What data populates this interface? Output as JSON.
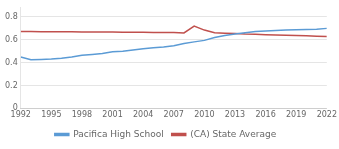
{
  "chart_data": {
    "type": "line",
    "x": [
      1992,
      1993,
      1994,
      1995,
      1996,
      1997,
      1998,
      1999,
      2000,
      2001,
      2002,
      2003,
      2004,
      2005,
      2006,
      2007,
      2008,
      2009,
      2010,
      2011,
      2012,
      2013,
      2014,
      2015,
      2016,
      2017,
      2018,
      2019,
      2020,
      2021,
      2022
    ],
    "series": [
      {
        "name": "Pacifica High School",
        "color": "#5b9bd5",
        "values": [
          0.45,
          0.425,
          0.428,
          0.432,
          0.438,
          0.45,
          0.465,
          0.472,
          0.48,
          0.495,
          0.5,
          0.51,
          0.522,
          0.53,
          0.538,
          0.548,
          0.568,
          0.582,
          0.595,
          0.62,
          0.638,
          0.65,
          0.662,
          0.672,
          0.678,
          0.682,
          0.685,
          0.688,
          0.69,
          0.692,
          0.7
        ]
      },
      {
        "name": "(CA) State Average",
        "color": "#c0504d",
        "values": [
          0.672,
          0.672,
          0.671,
          0.671,
          0.67,
          0.67,
          0.669,
          0.669,
          0.668,
          0.668,
          0.667,
          0.667,
          0.666,
          0.665,
          0.665,
          0.664,
          0.66,
          0.72,
          0.685,
          0.662,
          0.658,
          0.655,
          0.65,
          0.648,
          0.645,
          0.642,
          0.64,
          0.638,
          0.635,
          0.632,
          0.628
        ]
      }
    ],
    "xlim": [
      1992,
      2022
    ],
    "xticks": [
      1992,
      1995,
      1998,
      2001,
      2004,
      2007,
      2010,
      2013,
      2016,
      2019,
      2022
    ],
    "ylim": [
      0,
      0.88
    ],
    "yticks": [
      0,
      0.2,
      0.4,
      0.6,
      0.8
    ],
    "grid": "y",
    "legend": "bottom"
  }
}
